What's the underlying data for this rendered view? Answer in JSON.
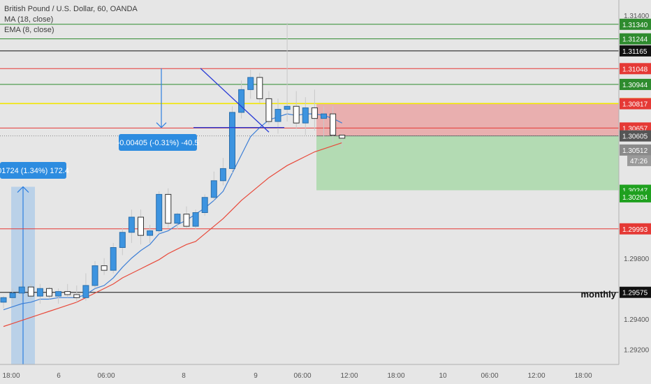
{
  "legend": {
    "title": "British Pound / U.S. Dollar, 60, OANDA",
    "ma": "MA (18, close)",
    "ema": "EMA (8, close)"
  },
  "chart_data": {
    "type": "candlestick",
    "ylim": [
      1.291,
      1.315
    ],
    "price_ticks": [
      1.314,
      1.298,
      1.294,
      1.292
    ],
    "time_labels": [
      "18:00",
      "6",
      "06:00",
      "8",
      "9",
      "06:00",
      "12:00",
      "18:00",
      "10",
      "06:00",
      "12:00",
      "18:00"
    ],
    "horizontal_levels": [
      {
        "price": 1.3134,
        "label": "1.31340",
        "color": "#2e8b2e"
      },
      {
        "price": 1.31244,
        "label": "1.31244",
        "color": "#2e8b2e"
      },
      {
        "price": 1.31165,
        "label": "1.31165",
        "color": "#111111"
      },
      {
        "price": 1.31048,
        "label": "1.31048",
        "color": "#e53935"
      },
      {
        "price": 1.30944,
        "label": "1.30944",
        "color": "#2e8b2e"
      },
      {
        "price": 1.30818,
        "label": "1.30818",
        "color": "#f2e600"
      },
      {
        "price": 1.30657,
        "label": "1.30657",
        "color": "#e53935"
      },
      {
        "price": 1.29993,
        "label": "1.29993",
        "color": "#e53935"
      },
      {
        "price": 1.29575,
        "label": "1.29575",
        "color": "#111111"
      }
    ],
    "extra_axis_labels": [
      {
        "price": 1.30817,
        "label": "1.30817",
        "color": "#e53935"
      },
      {
        "price": 1.30605,
        "label": "1.30605",
        "color": "#555555"
      },
      {
        "price": 1.30512,
        "label": "1.30512",
        "color": "#8a8a8a"
      },
      {
        "price": 1.30247,
        "label": "1.30247",
        "color": "#1fa01f"
      },
      {
        "price": 1.30204,
        "label": "1.30204",
        "color": "#1fa01f"
      }
    ],
    "countdown": "47:26",
    "candles": [
      [
        1.2951,
        1.2955,
        1.2947,
        1.2954
      ],
      [
        1.2954,
        1.296,
        1.295,
        1.2957
      ],
      [
        1.2957,
        1.2965,
        1.2952,
        1.2961
      ],
      [
        1.2961,
        1.2963,
        1.2953,
        1.2955
      ],
      [
        1.2955,
        1.2963,
        1.295,
        1.296
      ],
      [
        1.296,
        1.2961,
        1.2953,
        1.2955
      ],
      [
        1.2955,
        1.296,
        1.295,
        1.2958
      ],
      [
        1.2958,
        1.2963,
        1.2954,
        1.2956
      ],
      [
        1.2956,
        1.2962,
        1.2951,
        1.2954
      ],
      [
        1.2954,
        1.297,
        1.2952,
        1.2962
      ],
      [
        1.2962,
        1.2978,
        1.296,
        1.2975
      ],
      [
        1.2975,
        1.298,
        1.2969,
        1.2972
      ],
      [
        1.2972,
        1.299,
        1.297,
        1.2987
      ],
      [
        1.2987,
        1.3,
        1.2982,
        1.2997
      ],
      [
        1.2997,
        1.3012,
        1.299,
        1.3007
      ],
      [
        1.3007,
        1.3012,
        1.2989,
        1.2995
      ],
      [
        1.2995,
        1.3002,
        1.299,
        1.2998
      ],
      [
        1.2998,
        1.3024,
        1.2996,
        1.3022
      ],
      [
        1.3022,
        1.3026,
        1.3,
        1.3003
      ],
      [
        1.3003,
        1.301,
        1.2999,
        1.3009
      ],
      [
        1.3009,
        1.3014,
        1.3,
        1.3001
      ],
      [
        1.3001,
        1.3012,
        1.2999,
        1.301
      ],
      [
        1.301,
        1.3022,
        1.3008,
        1.302
      ],
      [
        1.302,
        1.3037,
        1.3018,
        1.3031
      ],
      [
        1.3031,
        1.3046,
        1.3028,
        1.3039
      ],
      [
        1.3039,
        1.308,
        1.3036,
        1.3076
      ],
      [
        1.3076,
        1.3097,
        1.3072,
        1.3091
      ],
      [
        1.3091,
        1.3104,
        1.3085,
        1.3099
      ],
      [
        1.3099,
        1.3102,
        1.3082,
        1.3085
      ],
      [
        1.3085,
        1.309,
        1.3068,
        1.307
      ],
      [
        1.307,
        1.3085,
        1.3062,
        1.3078
      ],
      [
        1.3078,
        1.3135,
        1.307,
        1.308
      ],
      [
        1.308,
        1.309,
        1.3065,
        1.3069
      ],
      [
        1.3069,
        1.3086,
        1.3061,
        1.3079
      ],
      [
        1.3079,
        1.3091,
        1.3064,
        1.3072
      ],
      [
        1.3072,
        1.308,
        1.3058,
        1.3075
      ],
      [
        1.3075,
        1.308,
        1.3056,
        1.3061
      ],
      [
        1.3061,
        1.3062,
        1.3052,
        1.3059
      ]
    ],
    "ma18": [
      1.2935,
      1.2937,
      1.2939,
      1.2941,
      1.2943,
      1.2945,
      1.2947,
      1.2949,
      1.2951,
      1.2954,
      1.2957,
      1.296,
      1.2963,
      1.2967,
      1.297,
      1.2973,
      1.2976,
      1.2979,
      1.2983,
      1.2986,
      1.2989,
      1.2991,
      1.2996,
      1.3001,
      1.3006,
      1.3012,
      1.3018,
      1.3023,
      1.3028,
      1.3033,
      1.3037,
      1.3041,
      1.3044,
      1.3047,
      1.305,
      1.3052,
      1.3054,
      1.3056
    ],
    "ema8": [
      1.2946,
      1.2948,
      1.295,
      1.2951,
      1.2953,
      1.2953,
      1.2954,
      1.2954,
      1.2954,
      1.2956,
      1.296,
      1.2962,
      1.2967,
      1.2974,
      1.298,
      1.2985,
      1.2989,
      1.2996,
      1.2998,
      1.3002,
      1.3005,
      1.3009,
      1.3013,
      1.3018,
      1.3024,
      1.3036,
      1.3048,
      1.306,
      1.3066,
      1.3071,
      1.3073,
      1.3075,
      1.3074,
      1.3075,
      1.3075,
      1.3074,
      1.3072,
      1.3069
    ],
    "measure_up": {
      "text": "01724 (1.34%) 172.4"
    },
    "measure_down": {
      "text": "-0.00405 (-0.31%) -40.5"
    },
    "position_box": {
      "entry": 1.30605,
      "stop": 1.30818,
      "target": 1.30247
    },
    "annotation": "monthly"
  }
}
